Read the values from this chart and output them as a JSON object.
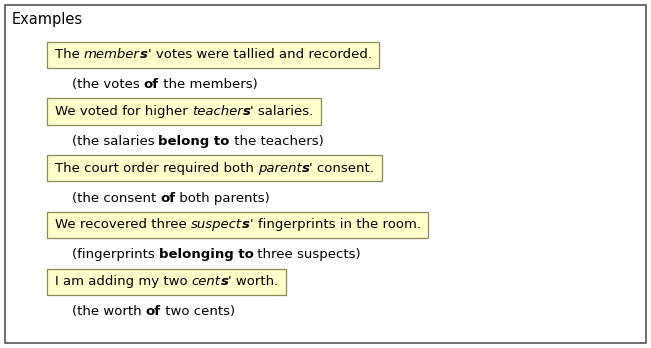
{
  "title": "Examples",
  "bg_color": "#ffffff",
  "border_color": "#555555",
  "box_bg_color": "#ffffcc",
  "box_border_color": "#888855",
  "entries": [
    {
      "sentence_parts": [
        {
          "text": "The ",
          "bold": false,
          "italic": false
        },
        {
          "text": "member",
          "bold": false,
          "italic": true
        },
        {
          "text": "s",
          "bold": true,
          "italic": true
        },
        {
          "text": "' votes were tallied and recorded.",
          "bold": false,
          "italic": false
        }
      ],
      "explanation_parts": [
        {
          "text": "(the votes ",
          "bold": false,
          "italic": false
        },
        {
          "text": "of",
          "bold": true,
          "italic": false
        },
        {
          "text": " the members)",
          "bold": false,
          "italic": false
        }
      ]
    },
    {
      "sentence_parts": [
        {
          "text": "We voted for higher ",
          "bold": false,
          "italic": false
        },
        {
          "text": "teacher",
          "bold": false,
          "italic": true
        },
        {
          "text": "s",
          "bold": true,
          "italic": true
        },
        {
          "text": "' salaries.",
          "bold": false,
          "italic": false
        }
      ],
      "explanation_parts": [
        {
          "text": "(the salaries ",
          "bold": false,
          "italic": false
        },
        {
          "text": "belong to",
          "bold": true,
          "italic": false
        },
        {
          "text": " the teachers)",
          "bold": false,
          "italic": false
        }
      ]
    },
    {
      "sentence_parts": [
        {
          "text": "The court order required both ",
          "bold": false,
          "italic": false
        },
        {
          "text": "parent",
          "bold": false,
          "italic": true
        },
        {
          "text": "s",
          "bold": true,
          "italic": true
        },
        {
          "text": "' consent.",
          "bold": false,
          "italic": false
        }
      ],
      "explanation_parts": [
        {
          "text": "(the consent ",
          "bold": false,
          "italic": false
        },
        {
          "text": "of",
          "bold": true,
          "italic": false
        },
        {
          "text": " both parents)",
          "bold": false,
          "italic": false
        }
      ]
    },
    {
      "sentence_parts": [
        {
          "text": "We recovered three ",
          "bold": false,
          "italic": false
        },
        {
          "text": "suspect",
          "bold": false,
          "italic": true
        },
        {
          "text": "s",
          "bold": true,
          "italic": true
        },
        {
          "text": "' fingerprints in the room.",
          "bold": false,
          "italic": false
        }
      ],
      "explanation_parts": [
        {
          "text": "(fingerprints ",
          "bold": false,
          "italic": false
        },
        {
          "text": "belonging to",
          "bold": true,
          "italic": false
        },
        {
          "text": " three suspects)",
          "bold": false,
          "italic": false
        }
      ]
    },
    {
      "sentence_parts": [
        {
          "text": "I am adding my two ",
          "bold": false,
          "italic": false
        },
        {
          "text": "cent",
          "bold": false,
          "italic": true
        },
        {
          "text": "s",
          "bold": true,
          "italic": true
        },
        {
          "text": "' worth.",
          "bold": false,
          "italic": false
        }
      ],
      "explanation_parts": [
        {
          "text": "(the worth ",
          "bold": false,
          "italic": false
        },
        {
          "text": "of",
          "bold": true,
          "italic": false
        },
        {
          "text": " two cents)",
          "bold": false,
          "italic": false
        }
      ]
    }
  ],
  "font_size": 9.5,
  "title_font_size": 10.5,
  "fig_width": 6.51,
  "fig_height": 3.48,
  "dpi": 100
}
